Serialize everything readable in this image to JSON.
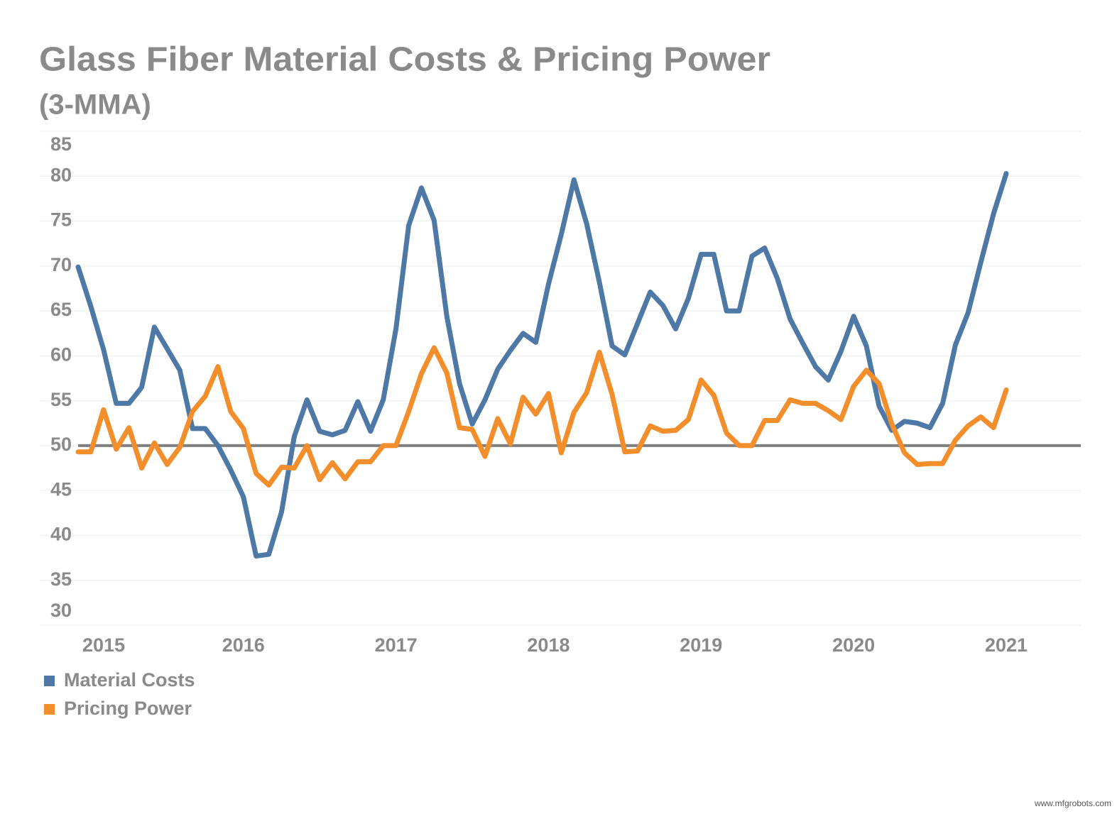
{
  "chart_data": {
    "type": "line",
    "title": "Glass Fiber Material Costs & Pricing Power",
    "subtitle": "(3-MMA)",
    "categories": [
      null,
      "2015",
      null,
      null,
      null,
      null,
      null,
      null,
      null,
      null,
      null,
      null,
      null,
      "2016",
      null,
      null,
      null,
      null,
      null,
      null,
      null,
      null,
      null,
      null,
      null,
      "2017",
      null,
      null,
      null,
      null,
      null,
      null,
      null,
      null,
      null,
      null,
      null,
      "2018",
      null,
      null,
      null,
      null,
      null,
      null,
      null,
      null,
      null,
      null,
      null,
      "2019",
      null,
      null,
      null,
      null,
      null,
      null,
      null,
      null,
      null,
      null,
      null,
      "2020",
      null,
      null,
      null,
      null,
      null,
      null,
      null,
      null,
      null,
      null,
      null,
      "2021"
    ],
    "series": [
      {
        "name": "Material Costs",
        "color": "#4e79a7",
        "values": [
          69.9,
          65.5,
          60.7,
          54.7,
          54.7,
          56.5,
          63.2,
          60.8,
          58.4,
          51.9,
          51.9,
          50,
          47.3,
          44.3,
          37.7,
          37.9,
          42.6,
          51,
          55.1,
          51.6,
          51.2,
          51.7,
          54.9,
          51.6,
          55.1,
          63,
          74.5,
          78.7,
          75.1,
          64.4,
          56.9,
          52.4,
          55.1,
          58.5,
          60.6,
          62.5,
          61.5,
          68,
          73.5,
          79.6,
          74.7,
          68.2,
          61.1,
          60.1,
          63.6,
          67.1,
          65.6,
          63,
          66.4,
          71.3,
          71.3,
          65,
          65,
          71.1,
          72,
          68.6,
          64.1,
          61.4,
          58.8,
          57.3,
          60.5,
          64.4,
          61.1,
          54.4,
          51.7,
          52.7,
          52.5,
          52,
          54.7,
          61.2,
          64.8,
          70.4,
          75.8,
          80.3
        ]
      },
      {
        "name": "Pricing Power",
        "color": "#f28e2b",
        "values": [
          49.3,
          49.3,
          54,
          49.6,
          52,
          47.5,
          50.3,
          47.9,
          49.8,
          53.8,
          55.5,
          58.8,
          53.8,
          51.9,
          46.9,
          45.6,
          47.6,
          47.5,
          50,
          46.2,
          48.1,
          46.3,
          48.2,
          48.2,
          50,
          50,
          53.8,
          58,
          60.9,
          58.1,
          52,
          51.8,
          48.8,
          53,
          50.2,
          55.4,
          53.5,
          55.8,
          49.2,
          53.7,
          55.9,
          60.4,
          55.7,
          49.3,
          49.4,
          52.2,
          51.6,
          51.7,
          52.9,
          57.3,
          55.6,
          51.4,
          50,
          50,
          52.8,
          52.8,
          55.1,
          54.7,
          54.7,
          53.9,
          52.9,
          56.6,
          58.4,
          56.9,
          52.4,
          49.2,
          47.9,
          48,
          48,
          50.6,
          52.2,
          53.2,
          52,
          56.2
        ]
      }
    ],
    "ylim": [
      30,
      85
    ],
    "yticks": [
      30,
      35,
      40,
      45,
      50,
      55,
      60,
      65,
      70,
      75,
      80,
      85
    ],
    "grid": true,
    "reference_line": 50,
    "reference_color": "#808080",
    "legend": "bottom-left",
    "watermark": "www.mfgrobots.com"
  }
}
